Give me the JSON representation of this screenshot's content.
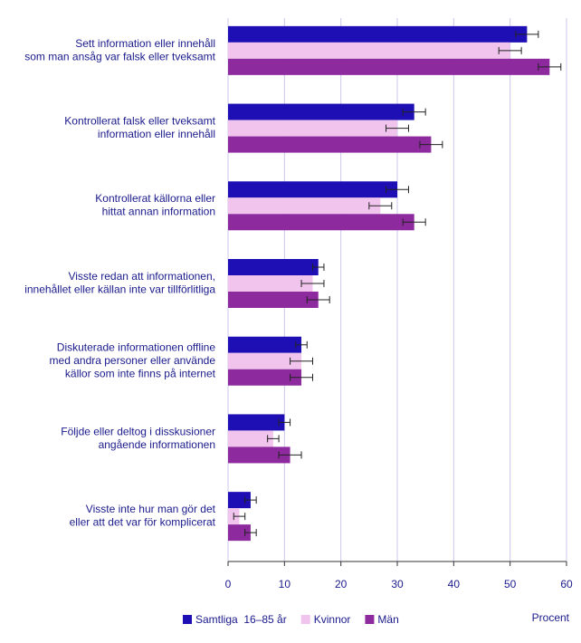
{
  "chart_data": {
    "type": "bar",
    "orientation": "horizontal",
    "categories": [
      [
        "Sett information eller innehåll",
        "som man ansåg var falsk eller tveksamt"
      ],
      [
        "Kontrollerat falsk eller tveksamt",
        "information eller innehåll"
      ],
      [
        "Kontrollerat källorna eller",
        "hittat annan information"
      ],
      [
        "Visste redan att informationen,",
        "innehållet eller källan inte var tillförlitliga"
      ],
      [
        "Diskuterade informationen offline",
        "med andra personer eller använde",
        "källor som inte finns på internet"
      ],
      [
        "Följde eller deltog i disskusioner",
        "angående informationen"
      ],
      [
        "Visste inte hur man gör det",
        "eller att det var för komplicerat"
      ]
    ],
    "series": [
      {
        "name": "Samtliga  16–85 år",
        "color": "#1e0fb4",
        "values": [
          53,
          33,
          30,
          16,
          13,
          10,
          4
        ],
        "errors": [
          2,
          2,
          2,
          1,
          1,
          1,
          1
        ]
      },
      {
        "name": "Kvinnor",
        "color": "#f0c4ec",
        "values": [
          50,
          30,
          27,
          15,
          13,
          8,
          2
        ],
        "errors": [
          2,
          2,
          2,
          2,
          2,
          1,
          1
        ]
      },
      {
        "name": "Män",
        "color": "#8c2a9e",
        "values": [
          57,
          36,
          33,
          16,
          13,
          11,
          4
        ],
        "errors": [
          2,
          2,
          2,
          2,
          2,
          2,
          1
        ]
      }
    ],
    "error_color": "#222222",
    "xlabel": "Procent",
    "xlim": [
      0,
      60
    ],
    "xticks": [
      0,
      10,
      20,
      30,
      40,
      50,
      60
    ],
    "grid": true
  }
}
